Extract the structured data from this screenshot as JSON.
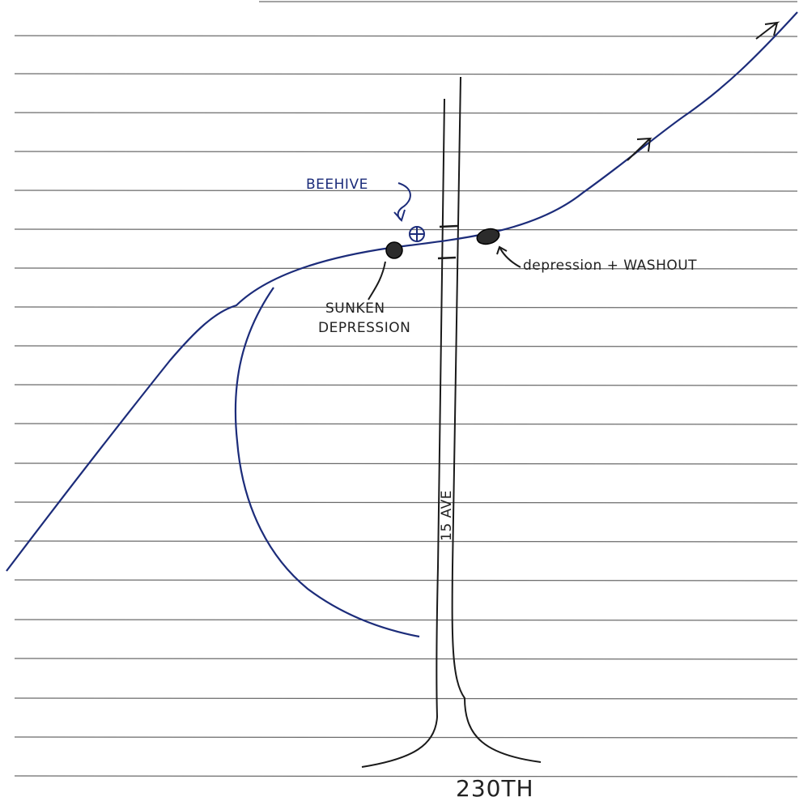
{
  "colors": {
    "paper": "#ffffff",
    "rule_line": "#6b6b6b",
    "ink_blue": "#1c2c7a",
    "ink_black": "#1a1a1a"
  },
  "labels": {
    "beehive": "BEEHIVE",
    "sunken_line1": "SUNKEN",
    "sunken_line2": "DEPRESSION",
    "depression_washout": "depression + WASHOUT",
    "avenue": "15 AVE",
    "cross_street": "230TH"
  },
  "icons": {
    "beehive_marker": "circled-cross-icon",
    "sunken_marker": "filled-dot-icon",
    "washout_marker": "filled-blob-icon",
    "flow_arrow": "arrowhead-icon"
  }
}
